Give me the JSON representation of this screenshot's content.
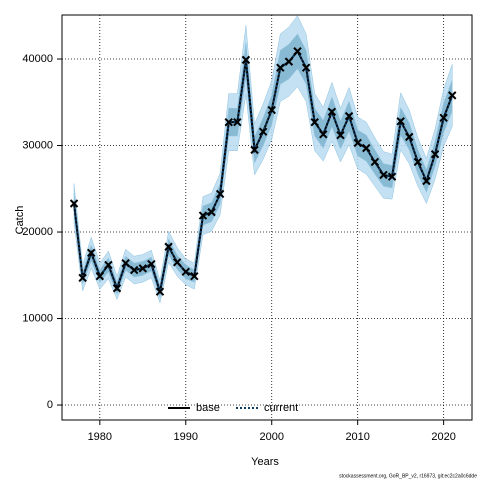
{
  "chart_data": {
    "type": "line",
    "x_label": "Years",
    "y_label": "Catch",
    "footnote": "stockassessment.org, GoR_BP_v2, r16973, git:ec2c2a0c6dde",
    "x": [
      1977,
      1978,
      1979,
      1980,
      1981,
      1982,
      1983,
      1984,
      1985,
      1986,
      1987,
      1988,
      1989,
      1990,
      1991,
      1992,
      1993,
      1994,
      1995,
      1996,
      1997,
      1998,
      1999,
      2000,
      2001,
      2002,
      2003,
      2004,
      2005,
      2006,
      2007,
      2008,
      2009,
      2010,
      2011,
      2012,
      2013,
      2014,
      2015,
      2016,
      2017,
      2018,
      2019,
      2020,
      2021
    ],
    "series": [
      {
        "name": "base",
        "color": "#000000",
        "values": [
          23300,
          14700,
          17600,
          14900,
          16200,
          13500,
          16400,
          15600,
          15800,
          16300,
          13100,
          18300,
          16500,
          15400,
          14900,
          21900,
          22300,
          24400,
          32700,
          32700,
          39900,
          29500,
          31600,
          34100,
          39000,
          39700,
          40900,
          39000,
          32700,
          31300,
          33900,
          31200,
          33400,
          30300,
          29700,
          28100,
          26600,
          26400,
          32800,
          31000,
          28100,
          25900,
          29000,
          33200,
          35800
        ]
      },
      {
        "name": "current",
        "color": "#0d3b66",
        "values": [
          23300,
          14700,
          17600,
          14900,
          16200,
          13500,
          16400,
          15600,
          15800,
          16300,
          13100,
          18300,
          16500,
          15400,
          14900,
          21900,
          22300,
          24400,
          32700,
          32700,
          39900,
          29500,
          31600,
          34100,
          39000,
          39700,
          40900,
          39000,
          32700,
          31300,
          33900,
          31200,
          33400,
          30300,
          29700,
          28100,
          26600,
          26400,
          32800,
          31000,
          28100,
          25900,
          29000,
          33200,
          35800
        ]
      }
    ],
    "bands": [
      {
        "color": "#b8dcf0",
        "upper": [
          25600,
          16200,
          19400,
          16400,
          17800,
          14900,
          18000,
          17200,
          17400,
          17900,
          14400,
          20100,
          18200,
          16900,
          16400,
          24100,
          24500,
          26800,
          36000,
          36000,
          43900,
          32500,
          34800,
          37500,
          42900,
          43700,
          45000,
          42900,
          36000,
          34400,
          37300,
          34300,
          36700,
          33300,
          32700,
          30900,
          29300,
          29000,
          36100,
          34100,
          30900,
          28500,
          31900,
          36500,
          39400
        ],
        "lower": [
          21000,
          13200,
          15800,
          13400,
          14600,
          12200,
          14800,
          14000,
          14200,
          14700,
          11800,
          16500,
          14900,
          13900,
          13400,
          19700,
          20100,
          22000,
          29400,
          29400,
          35900,
          26600,
          28400,
          30700,
          35100,
          35700,
          36800,
          35100,
          29400,
          28200,
          30500,
          28100,
          30100,
          27300,
          26700,
          25300,
          23900,
          23800,
          29500,
          27900,
          25300,
          23300,
          26100,
          29900,
          32200
        ]
      },
      {
        "color": "#7fb3cf",
        "upper": [
          24500,
          15400,
          18500,
          15600,
          17000,
          14200,
          17200,
          16400,
          16600,
          17100,
          13800,
          19200,
          17300,
          16200,
          15600,
          23000,
          23400,
          25600,
          34300,
          34300,
          41900,
          31000,
          33200,
          35800,
          41000,
          41700,
          42900,
          41000,
          34300,
          32900,
          35600,
          32800,
          35100,
          31800,
          31200,
          29500,
          27900,
          27700,
          34400,
          32600,
          29500,
          27200,
          30500,
          34900,
          37600
        ],
        "lower": [
          22100,
          14000,
          16700,
          14200,
          15400,
          12800,
          15600,
          14800,
          15000,
          15500,
          12400,
          17400,
          15700,
          14600,
          14200,
          20800,
          21200,
          23200,
          31100,
          31100,
          37900,
          28000,
          30000,
          32400,
          37100,
          37700,
          38900,
          37100,
          31100,
          29700,
          32200,
          29600,
          31700,
          28800,
          28200,
          26700,
          25300,
          25100,
          31200,
          29500,
          26700,
          24600,
          27600,
          31500,
          34000
        ]
      }
    ],
    "xlim": [
      1975.6,
      2023.3
    ],
    "ylim": [
      -1730,
      45090
    ],
    "xticks": [
      1980,
      1990,
      2000,
      2010,
      2020
    ],
    "yticks": [
      0,
      10000,
      20000,
      30000,
      40000
    ],
    "grid": true,
    "legend": "bottom"
  }
}
